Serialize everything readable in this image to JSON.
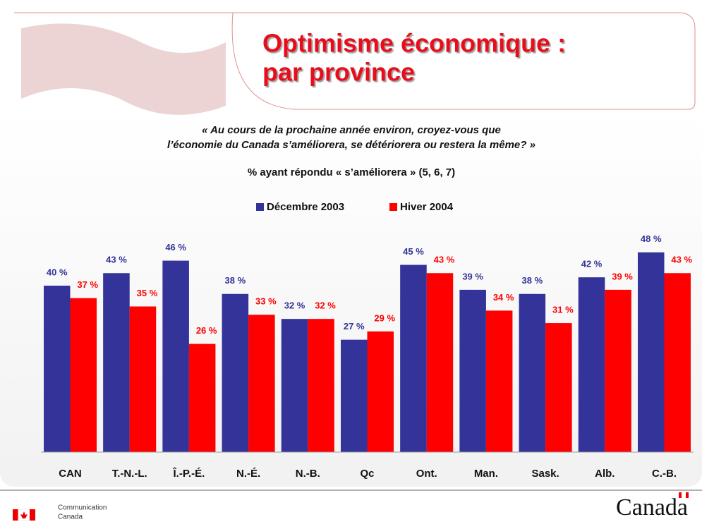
{
  "chart_data": {
    "type": "bar",
    "title": [
      "Optimisme économique :",
      "par province"
    ],
    "question": [
      "« Au cours de la prochaine année environ, croyez-vous que",
      "l’économie du Canada s’améliorera, se détériorera ou restera la même? »"
    ],
    "subtitle": "% ayant répondu « s’améliorera » (5, 6, 7)",
    "categories": [
      "CAN",
      "T.-N.-L.",
      "Î.-P.-É.",
      "N.-É.",
      "N.-B.",
      "Qc",
      "Ont.",
      "Man.",
      "Sask.",
      "Alb.",
      "C.-B."
    ],
    "series": [
      {
        "name": "Décembre 2003",
        "color": "#333399",
        "values": [
          40,
          43,
          46,
          38,
          32,
          27,
          45,
          39,
          38,
          42,
          48
        ],
        "value_labels": [
          "40 %",
          "43 %",
          "46 %",
          "38 %",
          "32 %",
          "27 %",
          "45 %",
          "39 %",
          "38 %",
          "42 %",
          "48 %"
        ]
      },
      {
        "name": "Hiver 2004",
        "color": "#ff0000",
        "values": [
          37,
          35,
          26,
          33,
          32,
          29,
          43,
          34,
          31,
          39,
          43
        ],
        "value_labels": [
          "37 %",
          "35 %",
          "26 %",
          "33 %",
          "32 %",
          "29 %",
          "43 %",
          "34 %",
          "31 %",
          "39 %",
          "43 %"
        ]
      }
    ]
  },
  "footer": {
    "department": [
      "Communication",
      "Canada"
    ],
    "wordmark": "Canada"
  }
}
